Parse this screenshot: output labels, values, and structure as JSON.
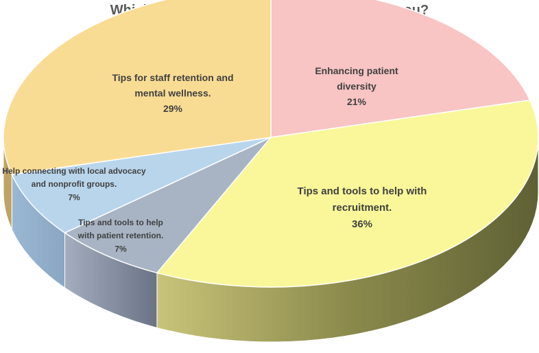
{
  "chart_data": {
    "type": "pie",
    "title": "Which of the following is most important to you?",
    "slices": [
      {
        "label_lines": [
          "Enhancing patient",
          "diversity"
        ],
        "percent_label": "21%",
        "value": 21,
        "color": "#f8c4c4",
        "side_color": "#b89090"
      },
      {
        "label_lines": [
          "Tips and tools to help with",
          "recruitment."
        ],
        "percent_label": "36%",
        "value": 36,
        "color": "#f9f79a",
        "side_color": "#8a8a4a"
      },
      {
        "label_lines": [
          "Tips and tools to help",
          "with patient retention."
        ],
        "percent_label": "7%",
        "value": 7,
        "color": "#a8b4c4",
        "side_color": "#6f7a8e"
      },
      {
        "label_lines": [
          "Help connecting with local advocacy",
          "and nonprofit groups."
        ],
        "percent_label": "7%",
        "value": 7,
        "color": "#b9d5ec",
        "side_color": "#7e9fbf"
      },
      {
        "label_lines": [
          "Tips for staff retention and",
          "mental wellness."
        ],
        "percent_label": "29%",
        "value": 29,
        "color": "#f9dc94",
        "side_color": "#bfa364"
      }
    ]
  }
}
